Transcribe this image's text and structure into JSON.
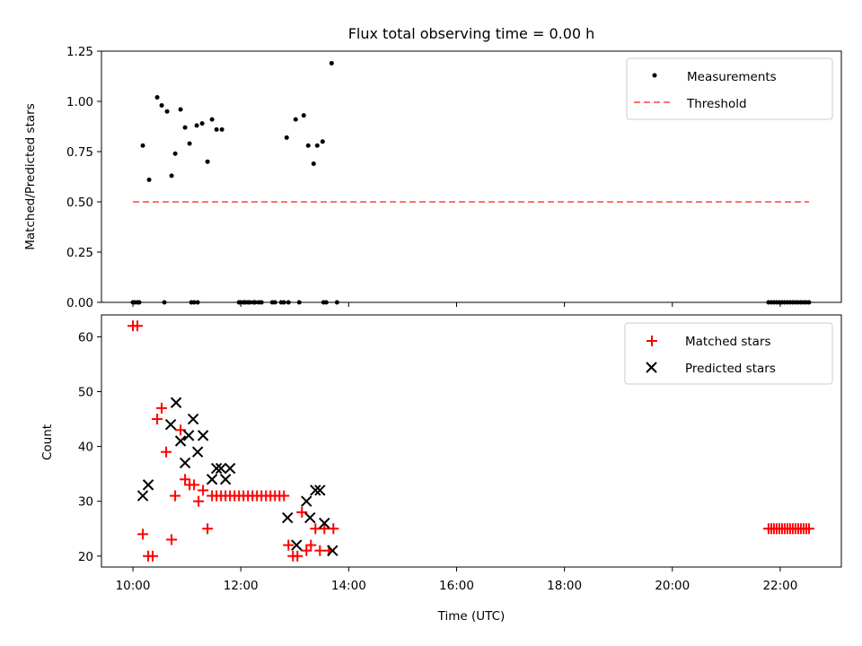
{
  "chart_data": [
    {
      "type": "scatter",
      "title": "Flux total observing time = 0.00 h",
      "xlabel": "",
      "ylabel": "Matched/Predicted stars",
      "ylim": [
        0,
        1.25
      ],
      "xlim": [
        "09:25",
        "23:08"
      ],
      "yticks": [
        0,
        0.25,
        0.5,
        0.75,
        1.0,
        1.25
      ],
      "ytick_labels": [
        "0.00",
        "0.25",
        "0.50",
        "0.75",
        "1.00",
        "1.25"
      ],
      "legend_position": "top-right",
      "series": [
        {
          "name": "Measurements",
          "marker": "dot",
          "color": "#000000",
          "x": [
            "10:11",
            "10:18",
            "10:27",
            "10:32",
            "10:38",
            "10:43",
            "10:47",
            "10:53",
            "10:58",
            "11:03",
            "11:11",
            "11:17",
            "11:23",
            "11:28",
            "11:33",
            "11:39",
            "12:51",
            "13:01",
            "13:10",
            "13:15",
            "13:21",
            "13:25",
            "13:31",
            "13:41",
            "10:00",
            "10:02",
            "10:05",
            "10:07",
            "10:35",
            "11:05",
            "11:08",
            "11:12",
            "11:58",
            "12:00",
            "12:03",
            "12:05",
            "12:08",
            "12:10",
            "12:14",
            "12:16",
            "12:20",
            "12:23",
            "12:35",
            "12:38",
            "12:45",
            "12:48",
            "12:53",
            "13:05",
            "13:32",
            "13:35",
            "13:47",
            "21:47",
            "21:50",
            "21:53",
            "21:56",
            "21:59",
            "22:02",
            "22:05",
            "22:08",
            "22:11",
            "22:14",
            "22:17",
            "22:20",
            "22:23",
            "22:26",
            "22:29",
            "22:32"
          ],
          "y": [
            0.78,
            0.61,
            1.02,
            0.98,
            0.95,
            0.63,
            0.74,
            0.96,
            0.87,
            0.79,
            0.88,
            0.89,
            0.7,
            0.91,
            0.86,
            0.86,
            0.82,
            0.91,
            0.93,
            0.78,
            0.69,
            0.78,
            0.8,
            1.19,
            0,
            0,
            0,
            0,
            0,
            0,
            0,
            0,
            0,
            0,
            0,
            0,
            0,
            0,
            0,
            0,
            0,
            0,
            0,
            0,
            0,
            0,
            0,
            0,
            0,
            0,
            0,
            0,
            0,
            0,
            0,
            0,
            0,
            0,
            0,
            0,
            0,
            0,
            0,
            0,
            0,
            0,
            0
          ]
        },
        {
          "name": "Threshold",
          "line_style": "dashed",
          "color": "#ff7070",
          "x": [
            "10:00",
            "22:32"
          ],
          "y": [
            0.5,
            0.5
          ]
        }
      ]
    },
    {
      "type": "scatter",
      "title": "",
      "xlabel": "Time (UTC)",
      "ylabel": "Count",
      "ylim": [
        18,
        64
      ],
      "xlim": [
        "09:25",
        "23:08"
      ],
      "yticks": [
        20,
        30,
        40,
        50,
        60
      ],
      "ytick_labels": [
        "20",
        "30",
        "40",
        "50",
        "60"
      ],
      "xticks": [
        "10:00",
        "12:00",
        "14:00",
        "16:00",
        "18:00",
        "20:00",
        "22:00"
      ],
      "legend_position": "top-right",
      "series": [
        {
          "name": "Matched stars",
          "marker": "plus",
          "color": "#ff0000",
          "x": [
            "10:00",
            "10:05",
            "10:11",
            "10:17",
            "10:22",
            "10:27",
            "10:32",
            "10:37",
            "10:43",
            "10:47",
            "10:53",
            "10:58",
            "11:03",
            "11:08",
            "11:13",
            "11:18",
            "11:23",
            "11:28",
            "11:33",
            "11:38",
            "11:43",
            "11:48",
            "11:53",
            "11:58",
            "12:03",
            "12:08",
            "12:13",
            "12:18",
            "12:23",
            "12:28",
            "12:33",
            "12:38",
            "12:43",
            "12:48",
            "12:53",
            "12:58",
            "13:03",
            "13:08",
            "13:13",
            "13:18",
            "13:23",
            "13:28",
            "13:33",
            "13:38",
            "13:43",
            "21:47",
            "21:50",
            "21:53",
            "21:56",
            "21:59",
            "22:02",
            "22:05",
            "22:08",
            "22:11",
            "22:14",
            "22:17",
            "22:20",
            "22:23",
            "22:26",
            "22:29",
            "22:32"
          ],
          "y": [
            62,
            62,
            24,
            20,
            20,
            45,
            47,
            39,
            23,
            31,
            43,
            34,
            33,
            33,
            30,
            32,
            25,
            31,
            31,
            31,
            31,
            31,
            31,
            31,
            31,
            31,
            31,
            31,
            31,
            31,
            31,
            31,
            31,
            31,
            22,
            20,
            20,
            28,
            21,
            22,
            25,
            21,
            25,
            21,
            25,
            25,
            25,
            25,
            25,
            25,
            25,
            25,
            25,
            25,
            25,
            25,
            25,
            25,
            25,
            25,
            25
          ]
        },
        {
          "name": "Predicted stars",
          "marker": "x",
          "color": "#000000",
          "x": [
            "10:11",
            "10:17",
            "10:42",
            "10:48",
            "10:53",
            "10:58",
            "11:02",
            "11:07",
            "11:12",
            "11:18",
            "11:28",
            "11:33",
            "11:38",
            "11:43",
            "11:48",
            "12:52",
            "13:02",
            "13:13",
            "13:17",
            "13:23",
            "13:28",
            "13:33",
            "13:42"
          ],
          "y": [
            31,
            33,
            44,
            48,
            41,
            37,
            42,
            45,
            39,
            42,
            34,
            36,
            36,
            34,
            36,
            27,
            22,
            30,
            27,
            32,
            32,
            26,
            21
          ]
        }
      ]
    }
  ]
}
